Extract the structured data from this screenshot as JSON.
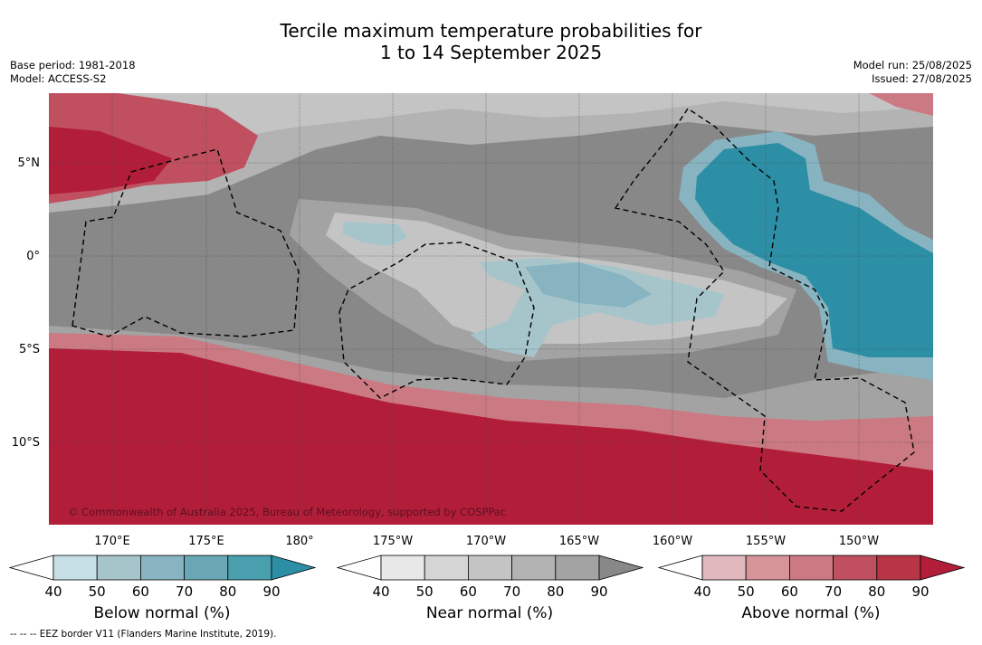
{
  "title_line1": "Tercile maximum temperature probabilities for",
  "title_line2": "1 to 14 September 2025",
  "base_period": "Base period: 1981-2018",
  "model": "Model: ACCESS-S2",
  "model_run": "Model run: 25/08/2025",
  "issued": "Issued: 27/08/2025",
  "copyright": "© Commonwealth of Australia 2025, Bureau of Meteorology, supported by COSPPac",
  "lat_labels": [
    "5°N",
    "0°",
    "5°S",
    "10°S"
  ],
  "lon_labels": [
    "170°E",
    "175°E",
    "180°",
    "175°W",
    "170°W",
    "165°W",
    "160°W",
    "155°W",
    "150°W"
  ],
  "colorbars": [
    {
      "label": "Below normal (%)",
      "ticks": [
        "40",
        "50",
        "60",
        "70",
        "80",
        "90"
      ],
      "colors": [
        "#ffffff",
        "#c6dfe5",
        "#a6c5cb",
        "#88b4c1",
        "#69a7b4",
        "#4a9fae",
        "#2d8fa5"
      ]
    },
    {
      "label": "Near normal (%)",
      "ticks": [
        "40",
        "50",
        "60",
        "70",
        "80",
        "90"
      ],
      "colors": [
        "#ffffff",
        "#e8e8e8",
        "#d5d5d5",
        "#c4c4c4",
        "#b3b3b3",
        "#a3a3a3",
        "#888888"
      ]
    },
    {
      "label": "Above normal (%)",
      "ticks": [
        "40",
        "50",
        "60",
        "70",
        "80",
        "90"
      ],
      "colors": [
        "#ffffff",
        "#e0b8bd",
        "#d69499",
        "#cb7a83",
        "#c0505f",
        "#b83447",
        "#b21e3a"
      ]
    }
  ],
  "footnote": "--  --  -- EEZ border V11 (Flanders Marine Institute, 2019)."
}
